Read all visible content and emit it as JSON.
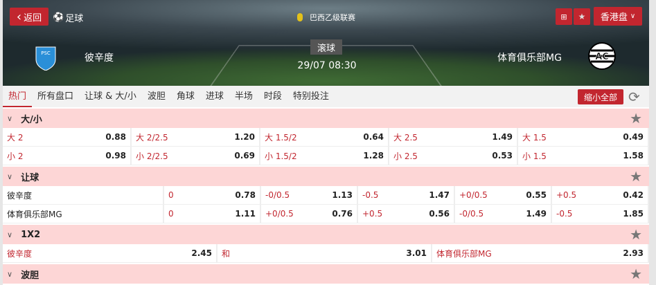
{
  "header": {
    "back": "返回",
    "sport": "足球",
    "league": "巴西乙级联赛",
    "odds_format": "香港盘",
    "status": "滚球",
    "datetime": "29/07 08:30",
    "home": "彼辛度",
    "away": "体育俱乐部MG",
    "home_logo": "PSC",
    "away_logo": "AC"
  },
  "tabs": [
    "热门",
    "所有盘口",
    "让球 & 大/小",
    "波胆",
    "角球",
    "进球",
    "半场",
    "时段",
    "特别投注"
  ],
  "collapse_all": "缩小全部",
  "ou": {
    "title": "大/小",
    "rows": [
      [
        {
          "l": "大 2",
          "v": "0.88"
        },
        {
          "l": "大 2/2.5",
          "v": "1.20"
        },
        {
          "l": "大 1.5/2",
          "v": "0.64"
        },
        {
          "l": "大 2.5",
          "v": "1.49"
        },
        {
          "l": "大 1.5",
          "v": "0.49"
        }
      ],
      [
        {
          "l": "小 2",
          "v": "0.98"
        },
        {
          "l": "小 2/2.5",
          "v": "0.69"
        },
        {
          "l": "小 1.5/2",
          "v": "1.28"
        },
        {
          "l": "小 2.5",
          "v": "0.53"
        },
        {
          "l": "小 1.5",
          "v": "1.58"
        }
      ]
    ]
  },
  "hdp": {
    "title": "让球",
    "rows": [
      {
        "team": "彼辛度",
        "cells": [
          {
            "l": "0",
            "v": "0.78"
          },
          {
            "l": "-0/0.5",
            "v": "1.13"
          },
          {
            "l": "-0.5",
            "v": "1.47"
          },
          {
            "l": "+0/0.5",
            "v": "0.55"
          },
          {
            "l": "+0.5",
            "v": "0.42"
          }
        ]
      },
      {
        "team": "体育俱乐部MG",
        "cells": [
          {
            "l": "0",
            "v": "1.11"
          },
          {
            "l": "+0/0.5",
            "v": "0.76"
          },
          {
            "l": "+0.5",
            "v": "0.56"
          },
          {
            "l": "-0/0.5",
            "v": "1.49"
          },
          {
            "l": "-0.5",
            "v": "1.85"
          }
        ]
      }
    ]
  },
  "x12": {
    "title": "1X2",
    "cells": [
      {
        "l": "彼辛度",
        "v": "2.45"
      },
      {
        "l": "和",
        "v": "3.01"
      },
      {
        "l": "体育俱乐部MG",
        "v": "2.93"
      }
    ]
  },
  "cs": {
    "title": "波胆"
  }
}
